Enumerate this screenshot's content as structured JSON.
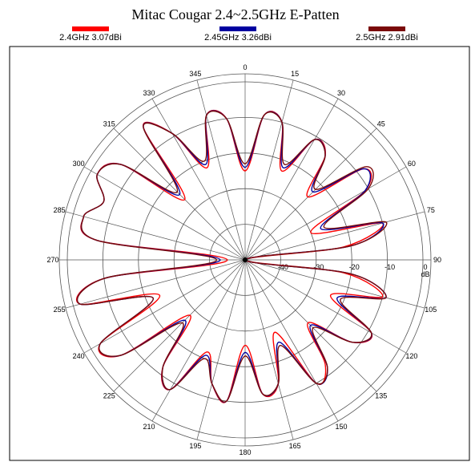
{
  "chart_data": {
    "type": "line",
    "subtype": "polar",
    "title": "Mitac Cougar 2.4~2.5GHz E-Patten",
    "angle_unit": "degrees",
    "angle_direction": "clockwise",
    "zero_direction": "top",
    "radial_range": [
      -50,
      0
    ],
    "radial_ticks": [
      -40,
      -30,
      -20,
      -10,
      0
    ],
    "radial_tick_labels": [
      "-40",
      "-30",
      "-20",
      "-10",
      "0",
      "dB"
    ],
    "angle_tick_labels": [
      "0",
      "15",
      "30",
      "45",
      "60",
      "75",
      "90",
      "105",
      "120",
      "135",
      "150",
      "165",
      "180",
      "195",
      "210",
      "225",
      "240",
      "255",
      "270",
      "285",
      "300",
      "315",
      "330",
      "345"
    ],
    "grid": true,
    "legend_position": "top",
    "angles": [
      0,
      7.5,
      15,
      22.5,
      30,
      37.5,
      45,
      52.5,
      60,
      67.5,
      75,
      82.5,
      90,
      97.5,
      105,
      112.5,
      120,
      127.5,
      135,
      142.5,
      150,
      157.5,
      165,
      172.5,
      180,
      187.5,
      195,
      202.5,
      210,
      217.5,
      225,
      232.5,
      240,
      247.5,
      255,
      262.5,
      270,
      277.5,
      285,
      292.5,
      300,
      307.5,
      315,
      322.5,
      330,
      337.5,
      345,
      352.5
    ],
    "series": [
      {
        "name": "2.4GHz",
        "label": "2.4GHz  3.07dBi",
        "color": "#ff0000",
        "values": [
          -25,
          -9,
          -10,
          -23,
          -11,
          -13,
          -25,
          -8,
          -11,
          -30,
          -10,
          -22,
          -50,
          -22,
          -10,
          -24,
          -9,
          -12,
          -25,
          -13,
          -10,
          -28,
          -14,
          -12,
          -26,
          -10,
          -14,
          -22,
          -8,
          -12,
          -28,
          -6,
          -3,
          -24,
          -2,
          -10,
          -45,
          -8,
          -3,
          -7,
          -2,
          -6,
          -26,
          -3,
          -9,
          -22,
          -8,
          -10
        ]
      },
      {
        "name": "2.45GHz",
        "label": "2.45GHz  3.26dBi",
        "color": "#0000a0",
        "values": [
          -24,
          -9,
          -10,
          -22,
          -11,
          -13,
          -23,
          -8,
          -11,
          -27,
          -10,
          -20,
          -50,
          -20,
          -9,
          -22,
          -9,
          -12,
          -24,
          -12,
          -10,
          -25,
          -14,
          -12,
          -24,
          -10,
          -14,
          -21,
          -8,
          -12,
          -26,
          -6,
          -3,
          -22,
          -2,
          -10,
          -43,
          -8,
          -3,
          -7,
          -2,
          -6,
          -24,
          -3,
          -9,
          -21,
          -8,
          -10
        ]
      },
      {
        "name": "2.5GHz",
        "label": "2.5GHz  2.91dBi",
        "color": "#7a0a0a",
        "values": [
          -23,
          -9,
          -10,
          -21,
          -11,
          -13,
          -22,
          -7,
          -10,
          -26,
          -9,
          -20,
          -50,
          -20,
          -9,
          -21,
          -9,
          -12,
          -23,
          -12,
          -10,
          -24,
          -14,
          -12,
          -23,
          -10,
          -14,
          -20,
          -8,
          -12,
          -25,
          -6,
          -3,
          -22,
          -2,
          -10,
          -42,
          -8,
          -3,
          -7,
          -2,
          -6,
          -23,
          -3,
          -9,
          -20,
          -8,
          -10
        ]
      }
    ]
  }
}
